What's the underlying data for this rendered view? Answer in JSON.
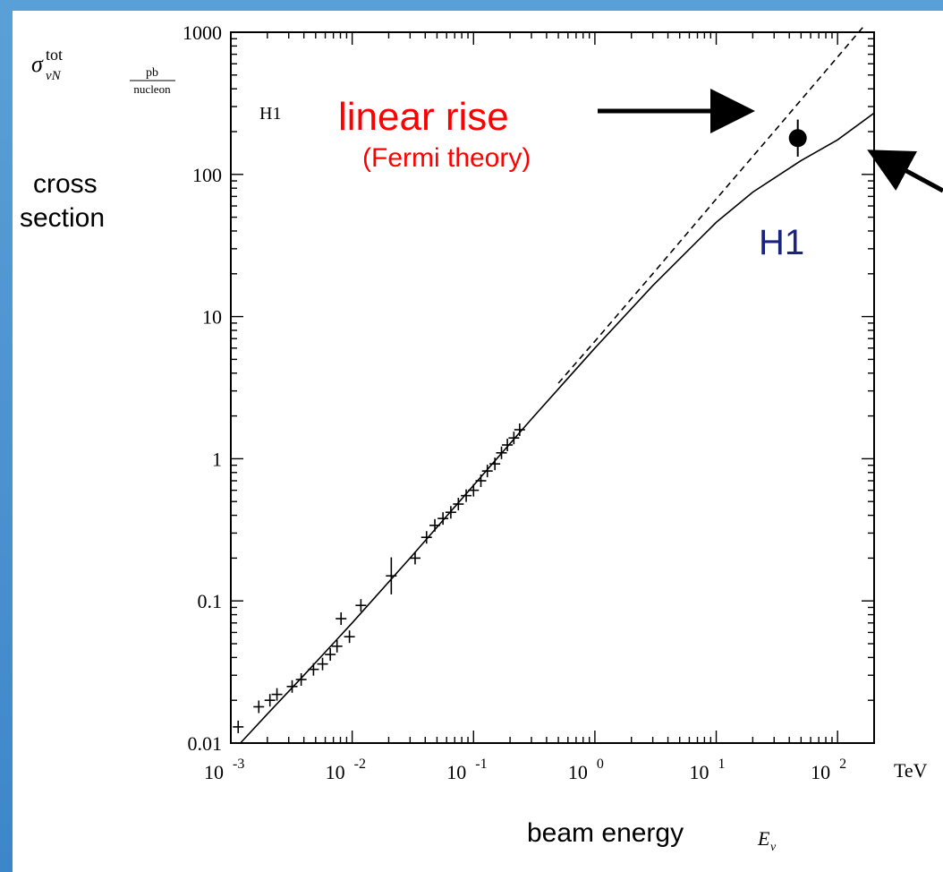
{
  "chart_data": {
    "type": "line",
    "xscale": "log",
    "yscale": "log",
    "xlim": [
      0.001,
      200
    ],
    "ylim": [
      0.01,
      1000
    ],
    "x_ticks": [
      {
        "base": "10",
        "exp": "-3"
      },
      {
        "base": "10",
        "exp": "-2"
      },
      {
        "base": "10",
        "exp": "-1"
      },
      {
        "base": "10",
        "exp": "0"
      },
      {
        "base": "10",
        "exp": "1"
      },
      {
        "base": "10",
        "exp": "2"
      }
    ],
    "x_tick_values": [
      0.001,
      0.01,
      0.1,
      1,
      10,
      100
    ],
    "x_unit": "TeV",
    "y_ticks": [
      "0.01",
      "0.1",
      "1",
      "10",
      "100",
      "1000"
    ],
    "y_tick_values": [
      0.01,
      0.1,
      1,
      10,
      100,
      1000
    ],
    "ylabel_symbol": "σ",
    "ylabel_sup": "tot",
    "ylabel_sub": "νN",
    "ylabel_unit_num": "pb",
    "ylabel_unit_den": "nucleon",
    "ylabel_text_1": "cross",
    "ylabel_text_2": "section",
    "xlabel_text": "beam energy",
    "xlabel_symbol": "E",
    "xlabel_sub": "ν",
    "plot_tag": "H1",
    "series": [
      {
        "style": "solid",
        "x": [
          0.0012,
          0.002,
          0.004,
          0.01,
          0.03,
          0.1,
          0.3,
          1,
          3,
          10,
          20,
          50,
          100,
          200
        ],
        "y": [
          0.01,
          0.016,
          0.03,
          0.07,
          0.2,
          0.65,
          1.9,
          6.0,
          16.5,
          46,
          75,
          125,
          175,
          270
        ]
      },
      {
        "style": "dashed",
        "x": [
          0.5,
          1,
          3,
          10,
          30,
          100,
          170
        ],
        "y": [
          3.4,
          6.7,
          20,
          67,
          200,
          670,
          1140
        ]
      }
    ],
    "points": {
      "x": [
        0.00115,
        0.0017,
        0.0021,
        0.0024,
        0.0032,
        0.0038,
        0.0048,
        0.0057,
        0.0066,
        0.0075,
        0.0081,
        0.0095,
        0.0118,
        0.021,
        0.033,
        0.041,
        0.048,
        0.056,
        0.065,
        0.075,
        0.087,
        0.1,
        0.115,
        0.13,
        0.15,
        0.17,
        0.19,
        0.215,
        0.24
      ],
      "y": [
        0.013,
        0.018,
        0.02,
        0.022,
        0.025,
        0.028,
        0.033,
        0.036,
        0.042,
        0.048,
        0.075,
        0.056,
        0.093,
        0.15,
        0.2,
        0.28,
        0.34,
        0.38,
        0.42,
        0.48,
        0.55,
        0.6,
        0.7,
        0.82,
        0.92,
        1.1,
        1.25,
        1.4,
        1.6
      ],
      "yerr_factor": [
        1.05,
        1.05,
        1.05,
        1.05,
        1.06,
        1.06,
        1.06,
        1.06,
        1.08,
        1.08,
        1.08,
        1.08,
        1.1,
        1.35,
        1.05,
        1.05,
        1.05,
        1.05,
        1.05,
        1.05,
        1.05,
        1.05,
        1.05,
        1.05,
        1.05,
        1.05,
        1.05,
        1.05,
        1.05
      ]
    },
    "h1_point": {
      "x": 47,
      "y": 180,
      "yerr_factor": 1.35
    },
    "annotations": {
      "linear_rise": "linear rise",
      "fermi_theory": "(Fermi theory)",
      "h1": "H1"
    },
    "colors": {
      "annotation_red": "#ff0000",
      "h1_blue": "#1a237e",
      "frame_blue": "#4a90d9"
    }
  }
}
